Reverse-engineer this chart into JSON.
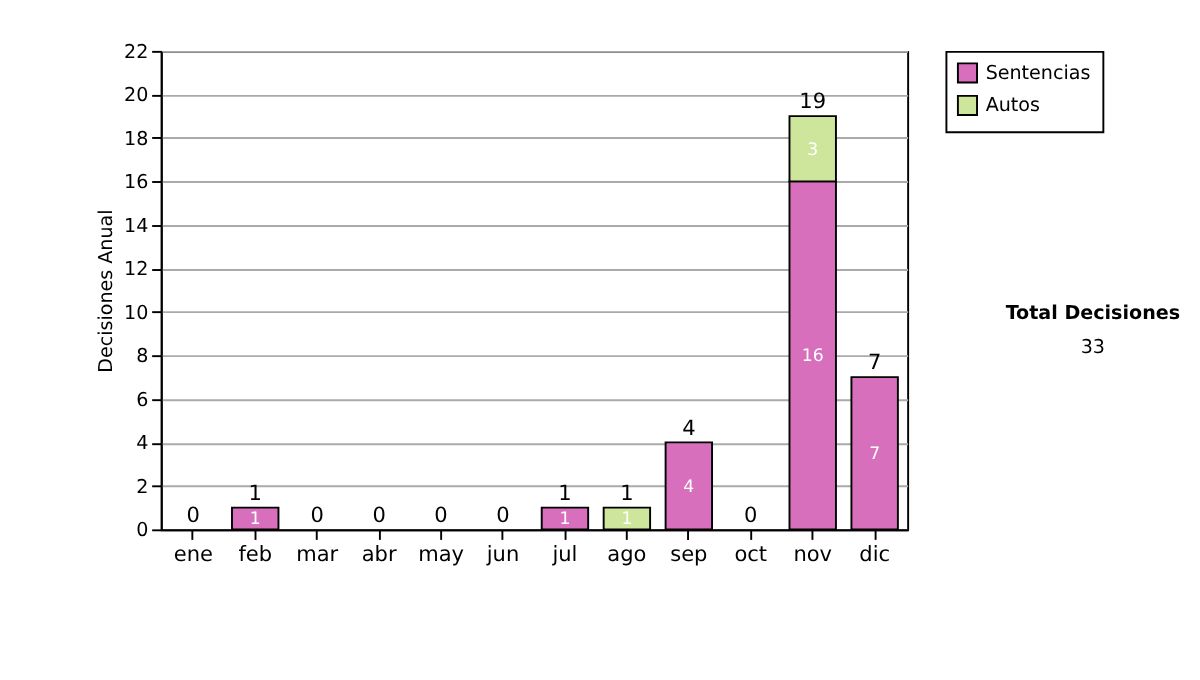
{
  "chart_data": {
    "type": "bar",
    "stacked": true,
    "ylabel": "Decisiones Anual",
    "categories": [
      "ene",
      "feb",
      "mar",
      "abr",
      "may",
      "jun",
      "jul",
      "ago",
      "sep",
      "oct",
      "nov",
      "dic"
    ],
    "series": [
      {
        "name": "Sentencias",
        "color": "#d76fbd",
        "values": [
          0,
          1,
          0,
          0,
          0,
          0,
          1,
          0,
          4,
          0,
          16,
          7
        ],
        "value_labels": [
          null,
          "1",
          null,
          null,
          null,
          null,
          "1",
          null,
          "4",
          null,
          "16",
          "7"
        ]
      },
      {
        "name": "Autos",
        "color": "#cde69b",
        "values": [
          0,
          0,
          0,
          0,
          0,
          0,
          0,
          1,
          0,
          0,
          3,
          0
        ],
        "value_labels": [
          null,
          null,
          null,
          null,
          null,
          null,
          null,
          "1",
          null,
          null,
          "3",
          null
        ]
      }
    ],
    "totals": [
      "0",
      "1",
      "0",
      "0",
      "0",
      "0",
      "1",
      "1",
      "4",
      "0",
      "19",
      "7"
    ],
    "ylim": [
      0,
      22
    ],
    "yticks": [
      0,
      2,
      4,
      6,
      8,
      10,
      12,
      14,
      16,
      18,
      20,
      22
    ],
    "grid": "y",
    "legend": "right",
    "annotations": [
      "Total Decisiones",
      "33"
    ]
  }
}
